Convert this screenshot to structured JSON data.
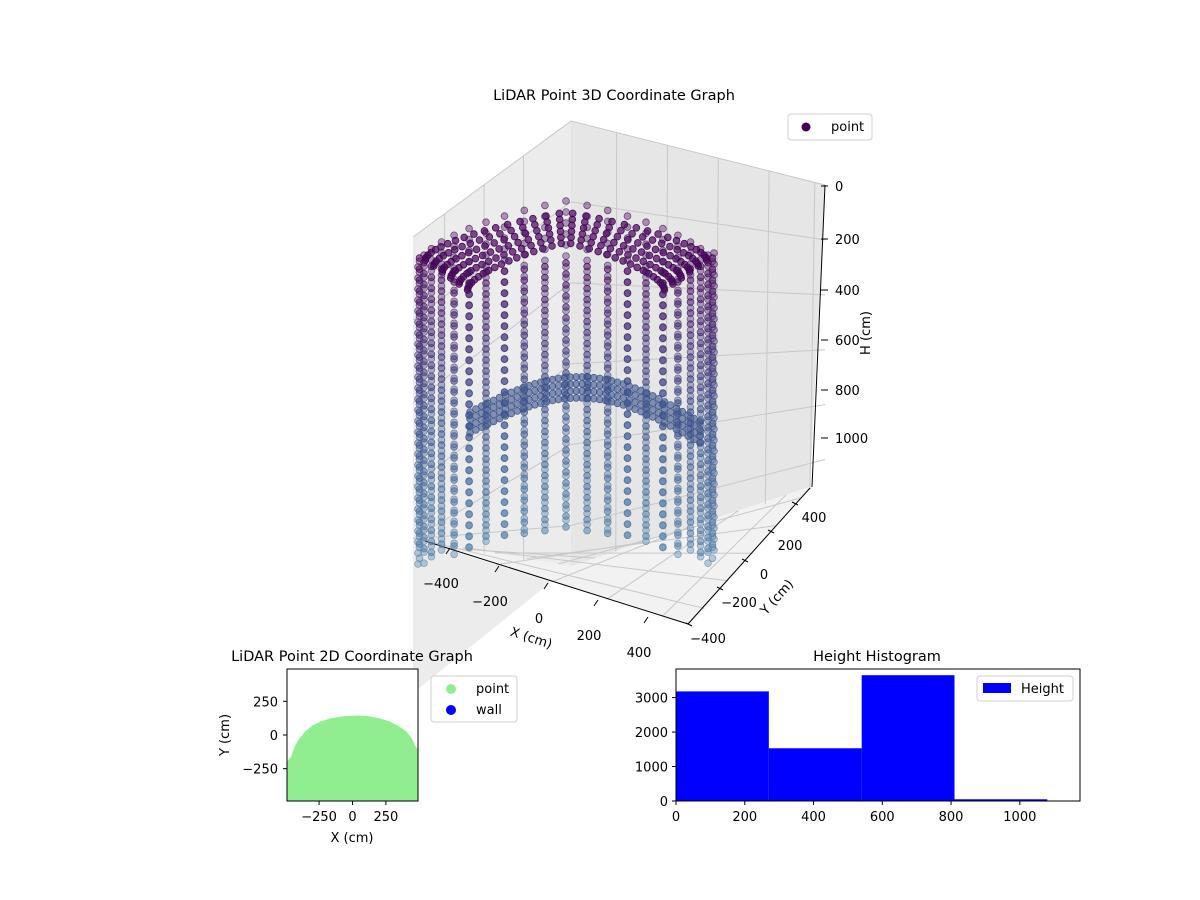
{
  "chart_data": [
    {
      "type": "scatter3d",
      "title": "LiDAR Point 3D Coordinate Graph",
      "xlabel": "X (cm)",
      "ylabel": "Y (cm)",
      "zlabel": "H (cm)",
      "xticks": [
        -400,
        -200,
        0,
        200,
        400
      ],
      "yticks": [
        -400,
        -200,
        0,
        200,
        400
      ],
      "zticks": [
        0,
        200,
        400,
        600,
        800,
        1000
      ],
      "xlim": [
        -480,
        480
      ],
      "ylim": [
        -480,
        480
      ],
      "zlim": [
        0,
        1100
      ],
      "z_inverted": true,
      "grid": true,
      "legend": {
        "placement": "top-right",
        "entries": [
          "point"
        ]
      },
      "series": [
        {
          "name": "point",
          "color": "#440154",
          "colormap": [
            "#440154",
            "#3b528b",
            "#5b8fb0"
          ],
          "shape": "cylindrical wall with a domed ceiling and an arched cross-beam",
          "radius_cm": 430,
          "height_cm": [
            0,
            1080
          ]
        }
      ]
    },
    {
      "type": "scatter",
      "title": "LiDAR Point 2D Coordinate Graph",
      "xlabel": "X (cm)",
      "ylabel": "Y (cm)",
      "xticks": [
        -250,
        0,
        250
      ],
      "yticks": [
        -250,
        0,
        250
      ],
      "xlim": [
        -490,
        490
      ],
      "ylim": [
        -490,
        490
      ],
      "legend": {
        "placement": "right",
        "entries": [
          "point",
          "wall"
        ]
      },
      "series": [
        {
          "name": "point",
          "color": "#90ee90",
          "outline": [
            [
              -490,
              -490
            ],
            [
              -490,
              -200
            ],
            [
              -460,
              -160
            ],
            [
              -430,
              -80
            ],
            [
              -400,
              -30
            ],
            [
              -350,
              30
            ],
            [
              -300,
              70
            ],
            [
              -240,
              100
            ],
            [
              -160,
              125
            ],
            [
              -60,
              140
            ],
            [
              40,
              145
            ],
            [
              120,
              140
            ],
            [
              200,
              125
            ],
            [
              280,
              100
            ],
            [
              340,
              70
            ],
            [
              400,
              30
            ],
            [
              440,
              -20
            ],
            [
              470,
              -80
            ],
            [
              490,
              -110
            ],
            [
              490,
              -490
            ]
          ]
        },
        {
          "name": "wall",
          "color": "#0000ff",
          "points": []
        }
      ]
    },
    {
      "type": "bar",
      "title": "Height Histogram",
      "xlabel": "",
      "ylabel": "",
      "xticks": [
        0,
        200,
        400,
        600,
        800,
        1000
      ],
      "yticks": [
        0,
        1000,
        2000,
        3000
      ],
      "xlim": [
        0,
        1175
      ],
      "ylim": [
        0,
        3830
      ],
      "legend": {
        "placement": "top-right",
        "entries": [
          "Height"
        ]
      },
      "series": [
        {
          "name": "Height",
          "color": "#0000ff",
          "bin_edges": [
            0,
            270,
            540,
            810,
            1080
          ],
          "values": [
            3180,
            1530,
            3650,
            50
          ]
        }
      ]
    }
  ]
}
